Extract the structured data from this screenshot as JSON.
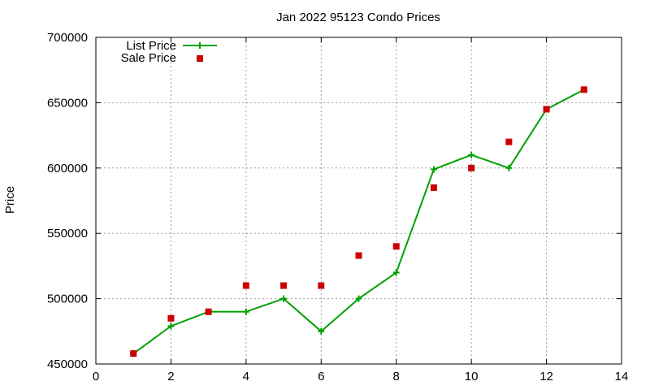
{
  "chart_data": {
    "type": "line",
    "title": "Jan 2022 95123 Condo Prices",
    "xlabel": "",
    "ylabel": "Price",
    "xlim": [
      0,
      14
    ],
    "ylim": [
      450000,
      700000
    ],
    "x_ticks": [
      0,
      2,
      4,
      6,
      8,
      10,
      12,
      14
    ],
    "y_ticks": [
      450000,
      500000,
      550000,
      600000,
      650000,
      700000
    ],
    "grid": true,
    "legend_position": "top-left",
    "series": [
      {
        "name": "List Price",
        "style": "line-points",
        "color": "#00a000",
        "x": [
          1,
          2,
          3,
          4,
          5,
          6,
          7,
          8,
          9,
          10,
          11,
          12,
          13
        ],
        "y": [
          458000,
          479000,
          490000,
          490000,
          500000,
          475000,
          500000,
          520000,
          599000,
          610000,
          600000,
          645000,
          660000
        ]
      },
      {
        "name": "Sale Price",
        "style": "points",
        "color": "#cc0000",
        "x": [
          1,
          2,
          3,
          4,
          5,
          6,
          7,
          8,
          9,
          10,
          11,
          12,
          13
        ],
        "y": [
          458000,
          485000,
          490000,
          510000,
          510000,
          510000,
          533000,
          540000,
          585000,
          600000,
          620000,
          645000,
          660000
        ]
      }
    ]
  }
}
